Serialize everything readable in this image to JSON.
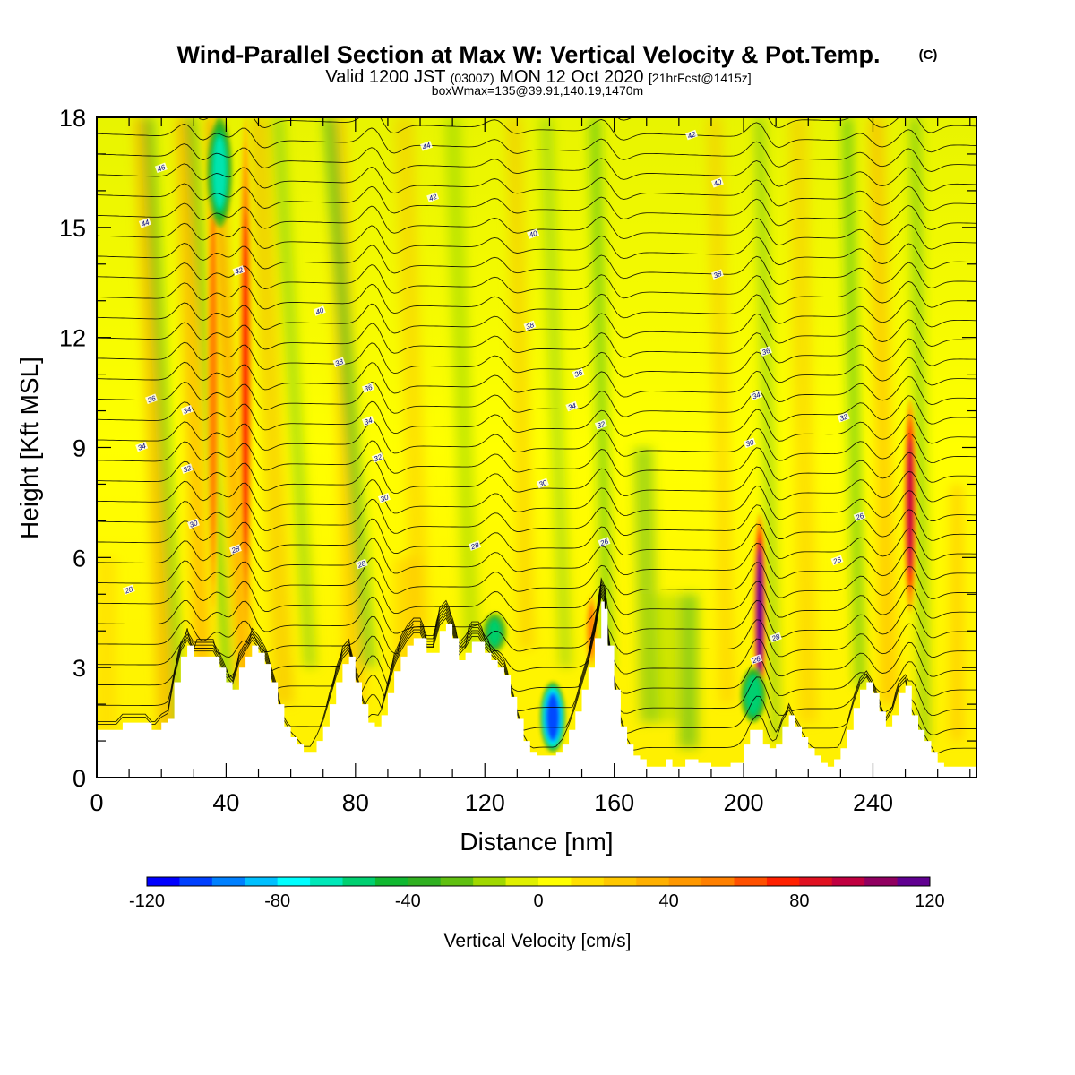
{
  "title": {
    "main": "Wind-Parallel Section at Max W: Vertical Velocity & Pot.Temp.",
    "mark": "(C)",
    "valid_prefix": "Valid 1200 JST",
    "valid_z": "(0300Z)",
    "valid_date": "MON 12 Oct 2020",
    "valid_fcst": "[21hrFcst@1415z]",
    "box": "boxWmax=135@39.91,140.19,1470m"
  },
  "chart_data": {
    "type": "heatmap",
    "xlabel": "Distance [nm]",
    "ylabel": "Height [Kft MSL]",
    "xlim": [
      0,
      272
    ],
    "ylim": [
      0,
      18
    ],
    "xticks": [
      0,
      40,
      80,
      120,
      160,
      200,
      240
    ],
    "yticks": [
      0,
      3,
      6,
      9,
      12,
      15,
      18
    ],
    "colorbar": {
      "label": "Vertical Velocity [cm/s]",
      "range": [
        -120,
        120
      ],
      "ticks": [
        -120,
        -80,
        -40,
        0,
        40,
        80,
        120
      ],
      "colors": [
        "#0000ff",
        "#0040ff",
        "#0080ff",
        "#00c0ff",
        "#00ffff",
        "#00e8b8",
        "#00d070",
        "#10b830",
        "#30b020",
        "#60c010",
        "#a0d800",
        "#e0f000",
        "#ffff00",
        "#ffe000",
        "#ffc800",
        "#ffb000",
        "#ff9800",
        "#ff8000",
        "#ff5000",
        "#ff2000",
        "#e01020",
        "#c00040",
        "#900060",
        "#600090"
      ]
    },
    "terrain": [
      [
        0,
        1.3
      ],
      [
        6,
        1.3
      ],
      [
        8,
        1.5
      ],
      [
        15,
        1.5
      ],
      [
        17,
        1.3
      ],
      [
        18,
        1.3
      ],
      [
        20,
        1.5
      ],
      [
        22,
        1.6
      ],
      [
        24,
        2.6
      ],
      [
        26,
        3.3
      ],
      [
        28,
        3.6
      ],
      [
        30,
        3.3
      ],
      [
        36,
        3.3
      ],
      [
        38,
        3.0
      ],
      [
        40,
        2.6
      ],
      [
        42,
        2.4
      ],
      [
        44,
        3.0
      ],
      [
        46,
        3.3
      ],
      [
        48,
        3.6
      ],
      [
        50,
        3.4
      ],
      [
        52,
        3.1
      ],
      [
        54,
        2.6
      ],
      [
        56,
        2.0
      ],
      [
        58,
        1.4
      ],
      [
        60,
        1.1
      ],
      [
        62,
        0.9
      ],
      [
        64,
        0.7
      ],
      [
        66,
        0.7
      ],
      [
        68,
        1.0
      ],
      [
        70,
        1.4
      ],
      [
        72,
        2.0
      ],
      [
        74,
        2.6
      ],
      [
        76,
        3.1
      ],
      [
        78,
        3.3
      ],
      [
        80,
        2.6
      ],
      [
        82,
        2.0
      ],
      [
        84,
        1.5
      ],
      [
        86,
        1.4
      ],
      [
        88,
        1.7
      ],
      [
        90,
        2.3
      ],
      [
        92,
        2.9
      ],
      [
        94,
        3.3
      ],
      [
        96,
        3.6
      ],
      [
        98,
        3.8
      ],
      [
        100,
        3.8
      ],
      [
        102,
        3.4
      ],
      [
        104,
        3.4
      ],
      [
        106,
        4.0
      ],
      [
        108,
        4.2
      ],
      [
        110,
        3.8
      ],
      [
        112,
        3.2
      ],
      [
        114,
        3.4
      ],
      [
        116,
        3.7
      ],
      [
        118,
        3.7
      ],
      [
        120,
        3.4
      ],
      [
        122,
        3.2
      ],
      [
        124,
        3.0
      ],
      [
        126,
        2.8
      ],
      [
        128,
        2.2
      ],
      [
        130,
        1.6
      ],
      [
        132,
        1.0
      ],
      [
        134,
        0.7
      ],
      [
        136,
        0.6
      ],
      [
        140,
        0.6
      ],
      [
        142,
        0.7
      ],
      [
        144,
        0.9
      ],
      [
        146,
        1.3
      ],
      [
        148,
        1.8
      ],
      [
        150,
        2.4
      ],
      [
        152,
        3.0
      ],
      [
        154,
        3.8
      ],
      [
        156,
        4.8
      ],
      [
        157,
        4.6
      ],
      [
        158,
        3.6
      ],
      [
        160,
        2.4
      ],
      [
        162,
        1.4
      ],
      [
        164,
        0.9
      ],
      [
        166,
        0.6
      ],
      [
        168,
        0.5
      ],
      [
        170,
        0.3
      ],
      [
        174,
        0.3
      ],
      [
        176,
        0.5
      ],
      [
        178,
        0.3
      ],
      [
        182,
        0.5
      ],
      [
        186,
        0.4
      ],
      [
        190,
        0.3
      ],
      [
        196,
        0.4
      ],
      [
        200,
        0.9
      ],
      [
        202,
        1.3
      ],
      [
        204,
        1.3
      ],
      [
        206,
        0.9
      ],
      [
        208,
        0.8
      ],
      [
        210,
        0.9
      ],
      [
        212,
        1.4
      ],
      [
        214,
        1.7
      ],
      [
        216,
        1.4
      ],
      [
        218,
        1.1
      ],
      [
        220,
        0.8
      ],
      [
        222,
        0.6
      ],
      [
        224,
        0.4
      ],
      [
        226,
        0.3
      ],
      [
        228,
        0.5
      ],
      [
        230,
        0.8
      ],
      [
        232,
        1.3
      ],
      [
        234,
        1.9
      ],
      [
        236,
        2.4
      ],
      [
        238,
        2.6
      ],
      [
        240,
        2.3
      ],
      [
        242,
        1.8
      ],
      [
        244,
        1.4
      ],
      [
        246,
        1.7
      ],
      [
        248,
        2.3
      ],
      [
        250,
        2.5
      ],
      [
        252,
        1.7
      ],
      [
        254,
        1.3
      ],
      [
        256,
        1.0
      ],
      [
        258,
        0.7
      ],
      [
        260,
        0.4
      ],
      [
        262,
        0.3
      ],
      [
        266,
        0.3
      ],
      [
        272,
        0.3
      ]
    ],
    "updraft_cores": [
      {
        "x": 205,
        "w_max": 110,
        "y_range": [
          1.8,
          7.2
        ]
      },
      {
        "x": 251.5,
        "w_max": 95,
        "y_range": [
          4.5,
          10.3
        ]
      },
      {
        "x": 46,
        "w_max": 70,
        "y_range": [
          3.5,
          18
        ]
      },
      {
        "x": 36,
        "w_max": 55,
        "y_range": [
          4.0,
          18
        ]
      },
      {
        "x": 153,
        "w_max": 50,
        "y_range": [
          3.0,
          5.0
        ]
      }
    ],
    "downdraft_cores": [
      {
        "x": 141,
        "w_min": -110,
        "y_range": [
          0.7,
          2.6
        ]
      },
      {
        "x": 38,
        "w_min": -70,
        "y_range": [
          15.0,
          18
        ]
      },
      {
        "x": 203,
        "w_min": -60,
        "y_range": [
          1.5,
          3.0
        ]
      },
      {
        "x": 123,
        "w_min": -55,
        "y_range": [
          3.4,
          4.5
        ]
      }
    ],
    "theta_labels": [
      {
        "text": "46",
        "x": 20,
        "y": 16.6
      },
      {
        "text": "44",
        "x": 15,
        "y": 15.1
      },
      {
        "text": "42",
        "x": 44,
        "y": 13.8
      },
      {
        "text": "40",
        "x": 69,
        "y": 12.7
      },
      {
        "text": "38",
        "x": 75,
        "y": 11.3
      },
      {
        "text": "36",
        "x": 17,
        "y": 10.3
      },
      {
        "text": "36",
        "x": 84,
        "y": 10.6
      },
      {
        "text": "34",
        "x": 28,
        "y": 10.0
      },
      {
        "text": "34",
        "x": 14,
        "y": 9.0
      },
      {
        "text": "34",
        "x": 84,
        "y": 9.7
      },
      {
        "text": "32",
        "x": 28,
        "y": 8.4
      },
      {
        "text": "32",
        "x": 87,
        "y": 8.7
      },
      {
        "text": "30",
        "x": 30,
        "y": 6.9
      },
      {
        "text": "30",
        "x": 89,
        "y": 7.6
      },
      {
        "text": "28",
        "x": 43,
        "y": 6.2
      },
      {
        "text": "28",
        "x": 82,
        "y": 5.8
      },
      {
        "text": "28",
        "x": 10,
        "y": 5.1
      },
      {
        "text": "44",
        "x": 102,
        "y": 17.2
      },
      {
        "text": "42",
        "x": 104,
        "y": 15.8
      },
      {
        "text": "40",
        "x": 135,
        "y": 14.8
      },
      {
        "text": "38",
        "x": 134,
        "y": 12.3
      },
      {
        "text": "36",
        "x": 149,
        "y": 11.0
      },
      {
        "text": "34",
        "x": 147,
        "y": 10.1
      },
      {
        "text": "32",
        "x": 156,
        "y": 9.6
      },
      {
        "text": "30",
        "x": 138,
        "y": 8.0
      },
      {
        "text": "28",
        "x": 117,
        "y": 6.3
      },
      {
        "text": "26",
        "x": 157,
        "y": 6.4
      },
      {
        "text": "42",
        "x": 184,
        "y": 17.5
      },
      {
        "text": "40",
        "x": 192,
        "y": 16.2
      },
      {
        "text": "38",
        "x": 192,
        "y": 13.7
      },
      {
        "text": "36",
        "x": 207,
        "y": 11.6
      },
      {
        "text": "34",
        "x": 204,
        "y": 10.4
      },
      {
        "text": "32",
        "x": 231,
        "y": 9.8
      },
      {
        "text": "30",
        "x": 202,
        "y": 9.1
      },
      {
        "text": "28",
        "x": 210,
        "y": 3.8
      },
      {
        "text": "26",
        "x": 204,
        "y": 3.2
      },
      {
        "text": "26",
        "x": 229,
        "y": 5.9
      },
      {
        "text": "26",
        "x": 236,
        "y": 7.1
      }
    ]
  }
}
